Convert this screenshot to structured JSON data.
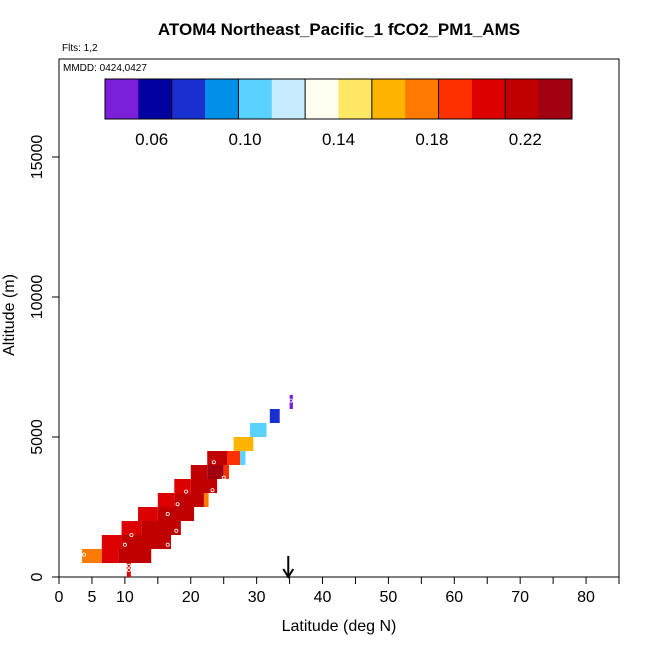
{
  "chart_data": {
    "type": "heatmap",
    "title": "ATOM4 Northeast_Pacific_1 fCO2_PM1_AMS",
    "flights_note": "Flts: 1,2",
    "date_note": "MMDD: 0424,0427",
    "xlabel": "Latitude (deg N)",
    "ylabel": "Altitude (m)",
    "xlim": [
      0,
      85
    ],
    "ylim": [
      0,
      18500
    ],
    "x_ticks": [
      0,
      5,
      10,
      20,
      30,
      40,
      50,
      60,
      70,
      80
    ],
    "y_ticks": [
      0,
      5000,
      10000,
      15000
    ],
    "colorbar": {
      "range": [
        0.04,
        0.24
      ],
      "ticks": [
        0.06,
        0.1,
        0.14,
        0.18,
        0.22
      ],
      "tick_labels": [
        "0.06",
        "0.10",
        "0.14",
        "0.18",
        "0.22"
      ],
      "colors": [
        "#7b1fd8",
        "#0000a0",
        "#1a2fd0",
        "#0090e8",
        "#5ad2ff",
        "#c8ecff",
        "#fffff0",
        "#ffe766",
        "#ffb400",
        "#ff7a00",
        "#ff3000",
        "#dd0000",
        "#c00000",
        "#a00010"
      ]
    },
    "marker": {
      "latitude": 34.8,
      "label": "arrow"
    },
    "cells": [
      {
        "lat0": 3.5,
        "lat1": 6.5,
        "alt0": 500,
        "alt1": 1000,
        "value": 0.18
      },
      {
        "lat0": 6.5,
        "lat1": 9.0,
        "alt0": 500,
        "alt1": 1000,
        "value": 0.2
      },
      {
        "lat0": 9.0,
        "lat1": 14.0,
        "alt0": 500,
        "alt1": 1000,
        "value": 0.225
      },
      {
        "lat0": 6.5,
        "lat1": 9.5,
        "alt0": 1000,
        "alt1": 1500,
        "value": 0.21
      },
      {
        "lat0": 9.5,
        "lat1": 17.0,
        "alt0": 1000,
        "alt1": 1500,
        "value": 0.225
      },
      {
        "lat0": 9.5,
        "lat1": 12.5,
        "alt0": 1500,
        "alt1": 2000,
        "value": 0.21
      },
      {
        "lat0": 12.5,
        "lat1": 18.5,
        "alt0": 1500,
        "alt1": 2000,
        "value": 0.225
      },
      {
        "lat0": 12.0,
        "lat1": 15.0,
        "alt0": 2000,
        "alt1": 2500,
        "value": 0.21
      },
      {
        "lat0": 15.0,
        "lat1": 20.5,
        "alt0": 2000,
        "alt1": 2500,
        "value": 0.225
      },
      {
        "lat0": 15.0,
        "lat1": 17.5,
        "alt0": 2500,
        "alt1": 3000,
        "value": 0.205
      },
      {
        "lat0": 17.5,
        "lat1": 22.0,
        "alt0": 2500,
        "alt1": 3000,
        "value": 0.225
      },
      {
        "lat0": 22.0,
        "lat1": 22.7,
        "alt0": 2500,
        "alt1": 3000,
        "value": 0.17
      },
      {
        "lat0": 17.5,
        "lat1": 20.0,
        "alt0": 3000,
        "alt1": 3500,
        "value": 0.21
      },
      {
        "lat0": 20.0,
        "lat1": 24.0,
        "alt0": 3000,
        "alt1": 3500,
        "value": 0.225
      },
      {
        "lat0": 20.0,
        "lat1": 22.5,
        "alt0": 3500,
        "alt1": 4000,
        "value": 0.215
      },
      {
        "lat0": 22.5,
        "lat1": 25.0,
        "alt0": 3500,
        "alt1": 4000,
        "value": 0.228
      },
      {
        "lat0": 25.0,
        "lat1": 25.8,
        "alt0": 3500,
        "alt1": 4000,
        "value": 0.185
      },
      {
        "lat0": 22.5,
        "lat1": 25.5,
        "alt0": 4000,
        "alt1": 4500,
        "value": 0.225
      },
      {
        "lat0": 25.5,
        "lat1": 27.5,
        "alt0": 4000,
        "alt1": 4500,
        "value": 0.19
      },
      {
        "lat0": 27.5,
        "lat1": 28.3,
        "alt0": 4000,
        "alt1": 4500,
        "value": 0.11
      },
      {
        "lat0": 26.5,
        "lat1": 29.5,
        "alt0": 4500,
        "alt1": 5000,
        "value": 0.165
      },
      {
        "lat0": 29.0,
        "lat1": 31.5,
        "alt0": 5000,
        "alt1": 5500,
        "value": 0.105
      },
      {
        "lat0": 32.0,
        "lat1": 33.5,
        "alt0": 5500,
        "alt1": 6000,
        "value": 0.07
      },
      {
        "lat0": 35.0,
        "lat1": 35.5,
        "alt0": 6000,
        "alt1": 6500,
        "value": 0.045
      },
      {
        "lat0": 10.3,
        "lat1": 10.9,
        "alt0": 0,
        "alt1": 500,
        "value": 0.2
      }
    ],
    "points": [
      {
        "lat": 3.8,
        "alt": 800
      },
      {
        "lat": 10.0,
        "alt": 1150
      },
      {
        "lat": 11.0,
        "alt": 1500
      },
      {
        "lat": 16.5,
        "alt": 1150
      },
      {
        "lat": 17.8,
        "alt": 1650
      },
      {
        "lat": 16.5,
        "alt": 2250
      },
      {
        "lat": 18.0,
        "alt": 2600
      },
      {
        "lat": 19.3,
        "alt": 3050
      },
      {
        "lat": 23.3,
        "alt": 3100
      },
      {
        "lat": 25.0,
        "alt": 3550
      },
      {
        "lat": 23.5,
        "alt": 4100
      },
      {
        "lat": 35.2,
        "alt": 6300
      },
      {
        "lat": 10.6,
        "alt": 400
      },
      {
        "lat": 10.6,
        "alt": 250
      }
    ]
  }
}
